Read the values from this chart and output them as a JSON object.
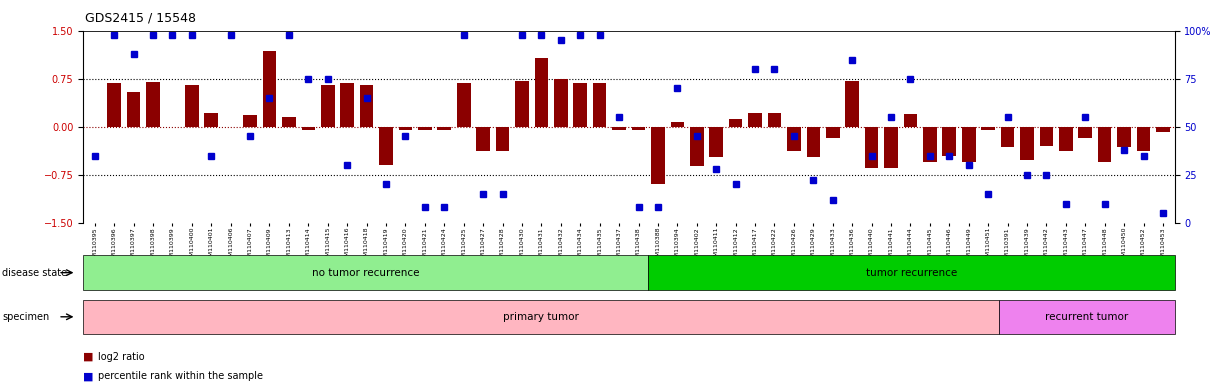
{
  "title": "GDS2415 / 15548",
  "samples": [
    "GSM110395",
    "GSM110396",
    "GSM110397",
    "GSM110398",
    "GSM110399",
    "GSM110400",
    "GSM110401",
    "GSM110406",
    "GSM110407",
    "GSM110409",
    "GSM110413",
    "GSM110414",
    "GSM110415",
    "GSM110416",
    "GSM110418",
    "GSM110419",
    "GSM110420",
    "GSM110421",
    "GSM110424",
    "GSM110425",
    "GSM110427",
    "GSM110428",
    "GSM110430",
    "GSM110431",
    "GSM110432",
    "GSM110434",
    "GSM110435",
    "GSM110437",
    "GSM110438",
    "GSM110388",
    "GSM110394",
    "GSM110402",
    "GSM110411",
    "GSM110412",
    "GSM110417",
    "GSM110422",
    "GSM110426",
    "GSM110429",
    "GSM110433",
    "GSM110436",
    "GSM110440",
    "GSM110441",
    "GSM110444",
    "GSM110445",
    "GSM110446",
    "GSM110449",
    "GSM110451",
    "GSM110391",
    "GSM110439",
    "GSM110442",
    "GSM110443",
    "GSM110447",
    "GSM110448",
    "GSM110450",
    "GSM110452",
    "GSM110453"
  ],
  "log2_ratio": [
    0.0,
    0.68,
    0.55,
    0.7,
    0.0,
    0.65,
    0.22,
    0.0,
    0.18,
    1.18,
    0.15,
    -0.05,
    0.65,
    0.68,
    0.65,
    -0.6,
    -0.05,
    -0.05,
    -0.05,
    0.68,
    -0.38,
    -0.38,
    0.72,
    1.08,
    0.75,
    0.68,
    0.68,
    -0.05,
    -0.05,
    -0.9,
    0.08,
    -0.62,
    -0.48,
    0.12,
    0.22,
    0.22,
    -0.38,
    -0.48,
    -0.18,
    0.72,
    -0.65,
    -0.65,
    0.2,
    -0.55,
    -0.45,
    -0.55,
    -0.05,
    -0.32,
    -0.52,
    -0.3,
    -0.38,
    -0.18,
    -0.55,
    -0.32,
    -0.38,
    -0.08
  ],
  "percentile": [
    35,
    98,
    88,
    98,
    98,
    98,
    35,
    98,
    45,
    65,
    98,
    75,
    75,
    30,
    65,
    20,
    45,
    8,
    8,
    98,
    15,
    15,
    98,
    98,
    95,
    98,
    98,
    55,
    8,
    8,
    70,
    45,
    28,
    20,
    80,
    80,
    45,
    22,
    12,
    85,
    35,
    55,
    75,
    35,
    35,
    30,
    15,
    55,
    25,
    25,
    10,
    55,
    10,
    38,
    35,
    5
  ],
  "disease_state_groups": [
    {
      "label": "no tumor recurrence",
      "start": 0,
      "end": 28,
      "color": "#90EE90"
    },
    {
      "label": "tumor recurrence",
      "start": 29,
      "end": 55,
      "color": "#00CC00"
    }
  ],
  "specimen_groups": [
    {
      "label": "primary tumor",
      "start": 0,
      "end": 46,
      "color": "#FFB6C1"
    },
    {
      "label": "recurrent tumor",
      "start": 47,
      "end": 55,
      "color": "#EE82EE"
    }
  ],
  "bar_color": "#8B0000",
  "dot_color": "#0000CD",
  "ylim_left": [
    -1.5,
    1.5
  ],
  "ylim_right": [
    0,
    100
  ],
  "yticks_left": [
    -1.5,
    -0.75,
    0,
    0.75,
    1.5
  ],
  "yticks_right": [
    0,
    25,
    50,
    75,
    100
  ],
  "left_label_color": "#CC0000",
  "right_label_color": "#0000CC",
  "background_color": "#ffffff",
  "disease_state_label": "disease state",
  "specimen_label": "specimen",
  "legend_log2": "log2 ratio",
  "legend_percentile": "percentile rank within the sample"
}
